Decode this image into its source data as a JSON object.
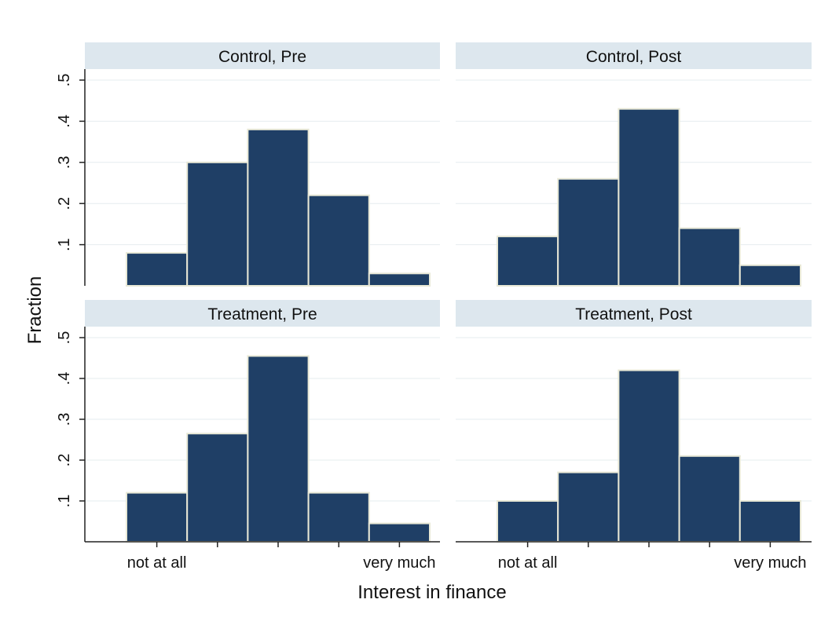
{
  "chart_data": {
    "type": "bar",
    "subtype": "histogram-small-multiples",
    "ylabel": "Fraction",
    "xlabel": "Interest in finance",
    "ylim": [
      0,
      0.5
    ],
    "yticks": [
      ".1",
      ".2",
      ".3",
      ".4",
      ".5"
    ],
    "ytick_values": [
      0.1,
      0.2,
      0.3,
      0.4,
      0.5
    ],
    "xtick_labels": [
      "not at all",
      "very much"
    ],
    "bins": 5,
    "grid": true,
    "colors": {
      "bar": "#1f3f66",
      "bar_edge": "#e8e8d6",
      "header": "#dde7ee",
      "grid": "#e6ecef"
    },
    "panels": [
      {
        "title": "Control, Pre",
        "values": [
          0.08,
          0.3,
          0.38,
          0.22,
          0.03
        ]
      },
      {
        "title": "Control, Post",
        "values": [
          0.12,
          0.26,
          0.43,
          0.14,
          0.05
        ]
      },
      {
        "title": "Treatment, Pre",
        "values": [
          0.12,
          0.265,
          0.455,
          0.12,
          0.045
        ]
      },
      {
        "title": "Treatment, Post",
        "values": [
          0.1,
          0.17,
          0.42,
          0.21,
          0.1
        ]
      }
    ]
  }
}
